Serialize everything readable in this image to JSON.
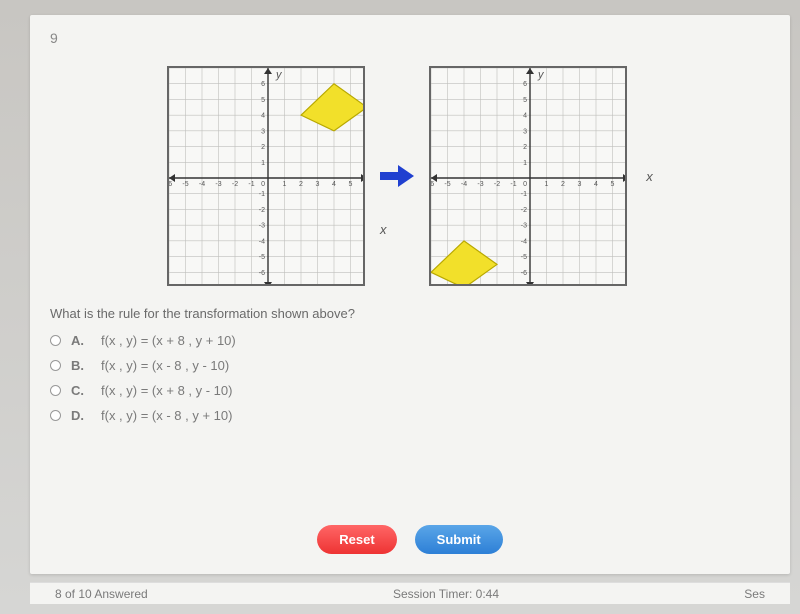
{
  "question_number": "9",
  "graphs": {
    "background_color": "#f8f8f6",
    "border_color": "#666666",
    "grid_color": "#bfbfbc",
    "axis_color": "#333333",
    "shape_fill": "#f2e02a",
    "shape_stroke": "#b8a800",
    "axis_label_color": "#555555",
    "axis_label_fontsize": 7,
    "xmin": -6,
    "xmax": 6,
    "ymin": -7,
    "ymax": 7,
    "x_title": "x",
    "y_title": "y",
    "left": {
      "shape": {
        "type": "quadrilateral",
        "points": [
          [
            2,
            4
          ],
          [
            4,
            6
          ],
          [
            6,
            4.5
          ],
          [
            4,
            3
          ]
        ]
      }
    },
    "right": {
      "shape": {
        "type": "quadrilateral",
        "points": [
          [
            -6,
            -6
          ],
          [
            -4,
            -4
          ],
          [
            -2,
            -5.5
          ],
          [
            -4,
            -7
          ]
        ]
      }
    },
    "arrow_color": "#2040d0"
  },
  "question_text": "What is the rule for the transformation shown above?",
  "choices": [
    {
      "letter": "A.",
      "text": "f(x , y) = (x + 8 , y + 10)"
    },
    {
      "letter": "B.",
      "text": "f(x , y) = (x - 8 , y - 10)"
    },
    {
      "letter": "C.",
      "text": "f(x , y) = (x + 8 , y - 10)"
    },
    {
      "letter": "D.",
      "text": "f(x , y) = (x - 8 , y + 10)"
    }
  ],
  "buttons": {
    "reset": "Reset",
    "submit": "Submit"
  },
  "footer": {
    "answered": "8 of 10 Answered",
    "timer": "Session Timer: 0:44",
    "ses": "Ses"
  },
  "colors": {
    "page_bg": "#d6d6d4",
    "panel_bg": "#f4f4f2",
    "text_muted": "#7a7a7a",
    "reset_bg": "#e33333",
    "submit_bg": "#2d7fd6"
  }
}
